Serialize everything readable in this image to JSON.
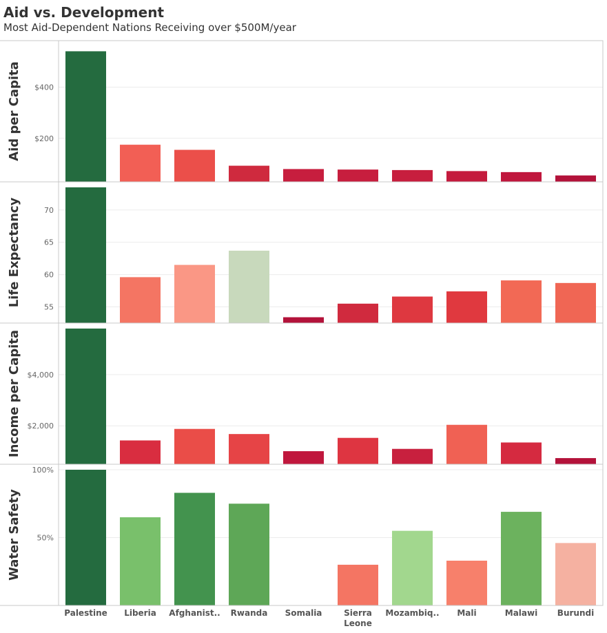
{
  "title": "Aid vs. Development",
  "subtitle": "Most Aid-Dependent Nations Receiving over $500M/year",
  "chart_data": {
    "type": "bar",
    "categories": [
      "Palestine",
      "Liberia",
      "Afghanist..",
      "Rwanda",
      "Somalia",
      "Sierra Leone",
      "Mozambiq..",
      "Mali",
      "Malawi",
      "Burundi"
    ],
    "panels": [
      {
        "ylabel": "Aid per Capita",
        "ylim": [
          30,
          560
        ],
        "ticks": [
          {
            "v": 200,
            "label": "$200"
          },
          {
            "v": 400,
            "label": "$400"
          }
        ],
        "values": [
          540,
          175,
          155,
          93,
          80,
          78,
          76,
          72,
          68,
          55
        ],
        "colors": [
          "#246b3f",
          "#f25f55",
          "#eb4f4a",
          "#cf2a3e",
          "#c71e3e",
          "#c71e3e",
          "#c71e3e",
          "#c41a3d",
          "#c0173d",
          "#b3123a"
        ]
      },
      {
        "ylabel": "Life Expectancy",
        "ylim": [
          52.5,
          73.5
        ],
        "ticks": [
          {
            "v": 55,
            "label": "55"
          },
          {
            "v": 60,
            "label": "60"
          },
          {
            "v": 65,
            "label": "65"
          },
          {
            "v": 70,
            "label": "70"
          }
        ],
        "values": [
          73.5,
          59.6,
          61.5,
          63.7,
          53.4,
          55.5,
          56.6,
          57.4,
          59.1,
          58.7
        ],
        "colors": [
          "#246b3f",
          "#f47563",
          "#fa9785",
          "#c8d9bc",
          "#b3123a",
          "#d02a3e",
          "#de3840",
          "#e0393f",
          "#f26955",
          "#f06654"
        ]
      },
      {
        "ylabel": "Income per Capita",
        "ylim": [
          500,
          5800
        ],
        "ticks": [
          {
            "v": 2000,
            "label": "$2,000"
          },
          {
            "v": 4000,
            "label": "$4,000"
          }
        ],
        "values": [
          5800,
          1430,
          1880,
          1680,
          1010,
          1530,
          1100,
          2040,
          1350,
          740
        ],
        "colors": [
          "#246b3f",
          "#d92d40",
          "#ea4d48",
          "#e64446",
          "#c0173d",
          "#de3541",
          "#c8203e",
          "#f06154",
          "#d52a40",
          "#b3123a"
        ]
      },
      {
        "ylabel": "Water Safety",
        "ylim": [
          0,
          100
        ],
        "ticks": [
          {
            "v": 50,
            "label": "50%"
          },
          {
            "v": 100,
            "label": "100%"
          }
        ],
        "values": [
          100,
          65,
          83,
          75,
          0,
          30,
          55,
          33,
          69,
          46
        ],
        "colors": [
          "#246b3f",
          "#79c06b",
          "#43934e",
          "#5ea757",
          "#ffffff",
          "#f47563",
          "#a2d78e",
          "#f7806b",
          "#6cb25e",
          "#f5b1a1"
        ]
      }
    ],
    "grid": true,
    "legend": "none"
  }
}
